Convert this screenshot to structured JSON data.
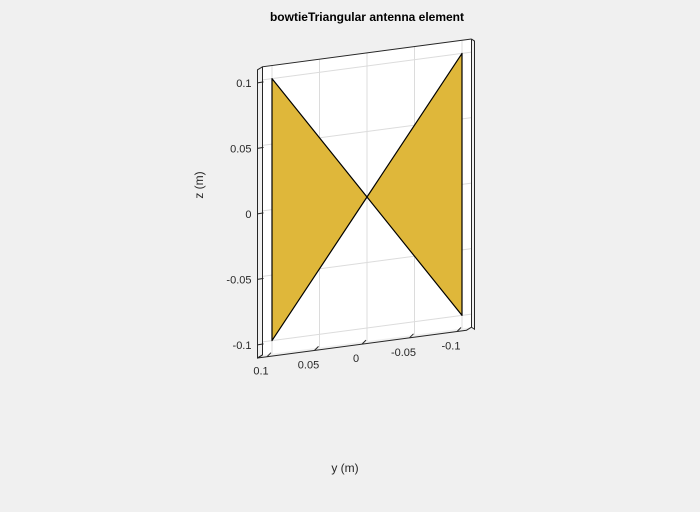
{
  "chart_data": {
    "type": "patch3d",
    "title": "bowtieTriangular antenna element",
    "ylabel": "y (m)",
    "zlabel": "z (m)",
    "ylim": [
      -0.1,
      0.1
    ],
    "zlim": [
      -0.1,
      0.1
    ],
    "y_ticks": [
      0.1,
      0.05,
      0,
      -0.05,
      -0.1
    ],
    "y_tick_labels": [
      "0.1",
      "0.05",
      "0",
      "-0.05",
      "-0.1"
    ],
    "z_ticks": [
      0.1,
      0.05,
      0,
      -0.05,
      -0.1
    ],
    "z_tick_labels": [
      "0.1",
      "0.05",
      "0",
      "-0.05",
      "-0.1"
    ],
    "grid": true,
    "colors": {
      "patch": "#dfb73a",
      "edge": "#000000",
      "plane": "#ffffff",
      "grid": "#dcdcdc",
      "background": "#f0f0f0"
    },
    "patches": [
      {
        "name": "left-triangle",
        "vertices": [
          [
            0.1,
            0.1
          ],
          [
            0.1,
            -0.1
          ],
          [
            0,
            0
          ]
        ]
      },
      {
        "name": "right-triangle",
        "vertices": [
          [
            -0.1,
            0.1
          ],
          [
            -0.1,
            -0.1
          ],
          [
            0,
            0
          ]
        ]
      }
    ]
  }
}
